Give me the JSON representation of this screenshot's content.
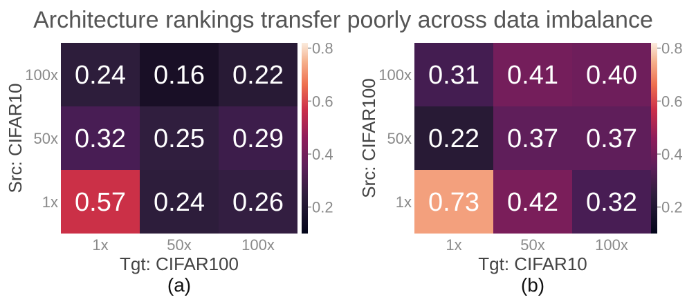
{
  "title": "Architecture rankings transfer poorly across data imbalance",
  "chart_data": [
    {
      "type": "heatmap",
      "panel_label": "(a)",
      "xlabel": "Tgt: CIFAR100",
      "ylabel": "Src: CIFAR10",
      "x_categories": [
        "1x",
        "50x",
        "100x"
      ],
      "y_categories": [
        "100x",
        "50x",
        "1x"
      ],
      "values": [
        [
          0.24,
          0.16,
          0.22
        ],
        [
          0.32,
          0.25,
          0.29
        ],
        [
          0.57,
          0.24,
          0.26
        ]
      ],
      "colorbar": {
        "ticks": [
          "0.2",
          "0.4",
          "0.6",
          "0.8"
        ],
        "range": [
          0.1,
          0.82
        ]
      }
    },
    {
      "type": "heatmap",
      "panel_label": "(b)",
      "xlabel": "Tgt: CIFAR10",
      "ylabel": "Src: CIFAR100",
      "x_categories": [
        "1x",
        "50x",
        "100x"
      ],
      "y_categories": [
        "100x",
        "50x",
        "1x"
      ],
      "values": [
        [
          0.31,
          0.41,
          0.4
        ],
        [
          0.22,
          0.37,
          0.37
        ],
        [
          0.73,
          0.42,
          0.32
        ]
      ],
      "colorbar": {
        "ticks": [
          "0.2",
          "0.4",
          "0.6",
          "0.8"
        ],
        "range": [
          0.1,
          0.82
        ]
      }
    }
  ],
  "colors": {
    "tick_text": "#8a8a8a",
    "label_text": "#444444",
    "cell_text": "#ffffff"
  }
}
